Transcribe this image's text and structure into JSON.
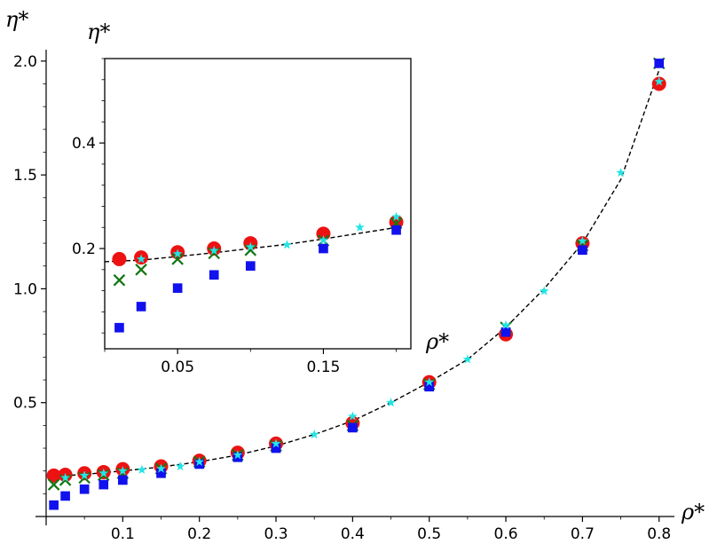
{
  "chart_data": [
    {
      "name": "main",
      "type": "scatter",
      "xlabel": "ρ*",
      "ylabel": "η*",
      "xlim": [
        0,
        0.82
      ],
      "ylim": [
        0,
        2.05
      ],
      "xticks": [
        0.1,
        0.2,
        0.3,
        0.4,
        0.5,
        0.6,
        0.7,
        0.8
      ],
      "xtick_labels": [
        "0.1",
        "0.2",
        "0.3",
        "0.4",
        "0.5",
        "0.6",
        "0.7",
        "0.8"
      ],
      "yticks": [
        0.5,
        1.0,
        1.5,
        2.0
      ],
      "ytick_labels": [
        "0.5",
        "1.0",
        "1.5",
        "2.0"
      ],
      "series": [
        {
          "name": "red-circles",
          "marker": "circle",
          "color": "#ee1111",
          "x": [
            0.01,
            0.025,
            0.05,
            0.075,
            0.1,
            0.15,
            0.2,
            0.25,
            0.3,
            0.4,
            0.5,
            0.6,
            0.7,
            0.8
          ],
          "y": [
            0.18,
            0.183,
            0.19,
            0.195,
            0.208,
            0.22,
            0.245,
            0.28,
            0.32,
            0.41,
            0.59,
            0.8,
            1.2,
            1.9
          ]
        },
        {
          "name": "green-crosses",
          "marker": "x",
          "color": "#117711",
          "x": [
            0.01,
            0.025,
            0.05,
            0.075,
            0.1,
            0.15,
            0.2,
            0.25,
            0.3,
            0.4,
            0.5,
            0.6,
            0.7,
            0.8
          ],
          "y": [
            0.14,
            0.16,
            0.17,
            0.182,
            0.19,
            0.21,
            0.24,
            0.27,
            0.31,
            0.4,
            0.58,
            0.83,
            1.19,
            1.99
          ]
        },
        {
          "name": "blue-squares",
          "marker": "square",
          "color": "#1111ee",
          "x": [
            0.01,
            0.025,
            0.05,
            0.075,
            0.1,
            0.15,
            0.2,
            0.25,
            0.3,
            0.4,
            0.5,
            0.6,
            0.7,
            0.8
          ],
          "y": [
            0.05,
            0.09,
            0.12,
            0.14,
            0.16,
            0.19,
            0.23,
            0.26,
            0.3,
            0.39,
            0.57,
            0.81,
            1.17,
            1.99
          ]
        },
        {
          "name": "cyan-stars",
          "marker": "star",
          "color": "#22e5e5",
          "x": [
            0.025,
            0.05,
            0.075,
            0.1,
            0.125,
            0.15,
            0.175,
            0.2,
            0.25,
            0.3,
            0.35,
            0.4,
            0.45,
            0.5,
            0.55,
            0.6,
            0.65,
            0.7,
            0.75,
            0.8
          ],
          "y": [
            0.17,
            0.18,
            0.19,
            0.2,
            0.205,
            0.21,
            0.22,
            0.24,
            0.27,
            0.32,
            0.36,
            0.44,
            0.5,
            0.59,
            0.69,
            0.84,
            0.99,
            1.21,
            1.51,
            1.91
          ]
        }
      ],
      "reference_curve": {
        "name": "dashed-fit",
        "style": "dashed",
        "color": "#000000",
        "x": [
          0.005,
          0.05,
          0.1,
          0.15,
          0.2,
          0.25,
          0.3,
          0.35,
          0.4,
          0.45,
          0.5,
          0.55,
          0.6,
          0.65,
          0.7,
          0.75,
          0.8
        ],
        "y": [
          0.175,
          0.185,
          0.2,
          0.218,
          0.24,
          0.27,
          0.31,
          0.36,
          0.42,
          0.5,
          0.59,
          0.69,
          0.83,
          1.0,
          1.2,
          1.48,
          1.96
        ]
      }
    },
    {
      "name": "inset",
      "type": "scatter",
      "xlabel": "ρ*",
      "ylabel": "η*",
      "xlim": [
        0,
        0.21
      ],
      "ylim": [
        0.01,
        0.56
      ],
      "xticks": [
        0.05,
        0.15
      ],
      "xtick_labels": [
        "0.05",
        "0.15"
      ],
      "yticks": [
        0.2,
        0.4
      ],
      "ytick_labels": [
        "0.2",
        "0.4"
      ],
      "series": [
        {
          "name": "red-circles",
          "marker": "circle",
          "color": "#ee1111",
          "x": [
            0.01,
            0.025,
            0.05,
            0.075,
            0.1,
            0.15,
            0.2
          ],
          "y": [
            0.18,
            0.183,
            0.193,
            0.2,
            0.21,
            0.228,
            0.25
          ]
        },
        {
          "name": "green-crosses",
          "marker": "x",
          "color": "#117711",
          "x": [
            0.01,
            0.025,
            0.05,
            0.075,
            0.1,
            0.15,
            0.2
          ],
          "y": [
            0.14,
            0.16,
            0.18,
            0.191,
            0.197,
            0.215,
            0.248
          ]
        },
        {
          "name": "blue-squares",
          "marker": "square",
          "color": "#1111ee",
          "x": [
            0.01,
            0.025,
            0.05,
            0.075,
            0.1,
            0.15,
            0.2
          ],
          "y": [
            0.05,
            0.09,
            0.125,
            0.15,
            0.167,
            0.2,
            0.235
          ]
        },
        {
          "name": "cyan-stars",
          "marker": "star",
          "color": "#22e5e5",
          "x": [
            0.025,
            0.05,
            0.075,
            0.1,
            0.125,
            0.15,
            0.175,
            0.2
          ],
          "y": [
            0.18,
            0.19,
            0.196,
            0.203,
            0.207,
            0.216,
            0.24,
            0.26
          ]
        }
      ],
      "reference_curve": {
        "name": "dashed-fit",
        "style": "dashed",
        "color": "#000000",
        "x": [
          0.0,
          0.025,
          0.05,
          0.075,
          0.1,
          0.125,
          0.15,
          0.175,
          0.2
        ],
        "y": [
          0.175,
          0.178,
          0.185,
          0.192,
          0.2,
          0.208,
          0.218,
          0.229,
          0.24
        ]
      }
    }
  ]
}
